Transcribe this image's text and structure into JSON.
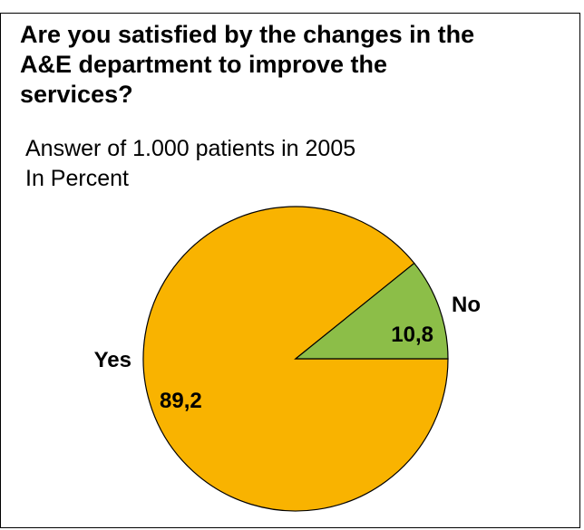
{
  "chart_data": {
    "type": "pie",
    "title": "Are you satisfied by the changes in the\nA&E department to improve the\nservices?",
    "subtitle": "Answer of 1.000 patients in 2005",
    "unit_label": "In Percent",
    "slices": [
      {
        "category": "Yes",
        "value": 89.2,
        "value_label": "89,2",
        "color": "#f9b300"
      },
      {
        "category": "No",
        "value": 10.8,
        "value_label": "10,8",
        "color": "#8cbe48"
      }
    ],
    "outline_color": "#000000"
  }
}
